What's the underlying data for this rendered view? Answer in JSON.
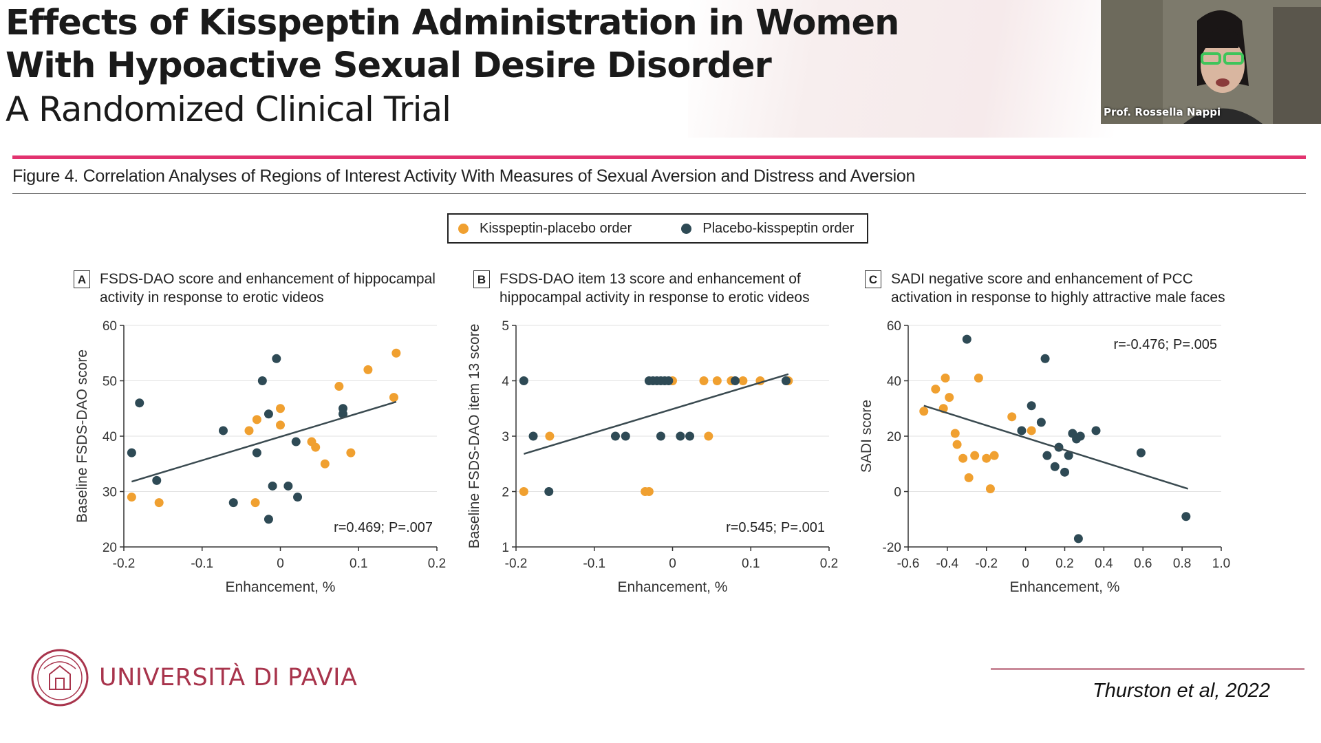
{
  "slide": {
    "title_line1": "Effects of Kisspeptin Administration in Women",
    "title_line2": "With Hypoactive Sexual Desire Disorder",
    "title_line3": "A Randomized Clinical Trial",
    "speaker_name": "Prof. Rossella Nappi",
    "figure_title": "Figure 4. Correlation Analyses of Regions of Interest Activity With Measures of Sexual Aversion and Distress and Aversion",
    "university": "UNIVERSITÀ DI PAVIA",
    "citation": "Thurston et al, 2022"
  },
  "legend": {
    "kp_label": "Kisspeptin-placebo order",
    "pk_label": "Placebo-kisspeptin order",
    "kp_color": "#f0a030",
    "pk_color": "#2e4a55"
  },
  "chart_data": [
    {
      "type": "scatter",
      "panel": "A",
      "title": "FSDS-DAO score and enhancement of hippocampal activity in response to erotic videos",
      "xlabel": "Enhancement, %",
      "ylabel": "Baseline FSDS-DAO score",
      "xlim": [
        -0.2,
        0.2
      ],
      "ylim": [
        20,
        60
      ],
      "xticks": [
        -0.2,
        -0.1,
        0,
        0.1,
        0.2
      ],
      "xtick_labels": [
        "-0.2",
        "-0.1",
        "0",
        "0.1",
        "0.2"
      ],
      "yticks": [
        20,
        30,
        40,
        50,
        60
      ],
      "ytick_labels": [
        "20",
        "30",
        "40",
        "50",
        "60"
      ],
      "annotation_stat": "r=0.469;",
      "annotation_p": "P=.007",
      "annotation_pos": "bottom-right",
      "trend": [
        [
          -0.19,
          31.8
        ],
        [
          0.148,
          46.2
        ]
      ],
      "series": [
        {
          "name": "Kisspeptin-placebo order",
          "x": [
            -0.19,
            -0.155,
            -0.04,
            -0.03,
            -0.032,
            0.0,
            0.0,
            0.04,
            0.045,
            0.057,
            0.075,
            0.09,
            0.112,
            0.145,
            0.148
          ],
          "y": [
            29,
            28,
            41,
            43,
            28,
            45,
            42,
            39,
            38,
            35,
            49,
            37,
            52,
            47,
            55
          ]
        },
        {
          "name": "Placebo-kisspeptin order",
          "x": [
            -0.19,
            -0.18,
            -0.158,
            -0.073,
            -0.06,
            -0.03,
            -0.023,
            -0.015,
            -0.015,
            -0.01,
            -0.005,
            0.01,
            0.02,
            0.022,
            0.08,
            0.08
          ],
          "y": [
            37,
            46,
            32,
            41,
            28,
            37,
            50,
            44,
            25,
            31,
            54,
            31,
            39,
            29,
            45,
            44
          ]
        }
      ]
    },
    {
      "type": "scatter",
      "panel": "B",
      "title": "FSDS-DAO item 13 score and enhancement of hippocampal activity in response to erotic videos",
      "xlabel": "Enhancement, %",
      "ylabel": "Baseline FSDS-DAO item 13 score",
      "xlim": [
        -0.2,
        0.2
      ],
      "ylim": [
        1,
        5
      ],
      "xticks": [
        -0.2,
        -0.1,
        0,
        0.1,
        0.2
      ],
      "xtick_labels": [
        "-0.2",
        "-0.1",
        "0",
        "0.1",
        "0.2"
      ],
      "yticks": [
        1,
        2,
        3,
        4,
        5
      ],
      "ytick_labels": [
        "1",
        "2",
        "3",
        "4",
        "5"
      ],
      "annotation_stat": "r=0.545;",
      "annotation_p": "P=.001",
      "annotation_pos": "bottom-right",
      "trend": [
        [
          -0.19,
          2.68
        ],
        [
          0.148,
          4.12
        ]
      ],
      "series": [
        {
          "name": "Kisspeptin-placebo order",
          "x": [
            -0.19,
            -0.157,
            -0.035,
            -0.03,
            0.0,
            0.04,
            0.057,
            0.075,
            0.09,
            0.112,
            0.148,
            0.046
          ],
          "y": [
            2,
            3,
            2,
            2,
            4,
            4,
            4,
            4,
            4,
            4,
            4,
            3
          ]
        },
        {
          "name": "Placebo-kisspeptin order",
          "x": [
            -0.19,
            -0.178,
            -0.158,
            -0.073,
            -0.06,
            -0.03,
            -0.025,
            -0.02,
            -0.015,
            -0.01,
            -0.005,
            -0.015,
            0.01,
            0.022,
            0.08,
            0.145
          ],
          "y": [
            4,
            3,
            2,
            3,
            3,
            4,
            4,
            4,
            4,
            4,
            4,
            3,
            3,
            3,
            4,
            4
          ]
        }
      ]
    },
    {
      "type": "scatter",
      "panel": "C",
      "title": "SADI negative score and enhancement of PCC activation in response to highly attractive male faces",
      "xlabel": "Enhancement, %",
      "ylabel": "SADI score",
      "xlim": [
        -0.6,
        1.0
      ],
      "ylim": [
        -20,
        60
      ],
      "xticks": [
        -0.6,
        -0.4,
        -0.2,
        0,
        0.2,
        0.4,
        0.6,
        0.8,
        1.0
      ],
      "xtick_labels": [
        "-0.6",
        "-0.4",
        "-0.2",
        "0",
        "0.2",
        "0.4",
        "0.6",
        "0.8",
        "1.0"
      ],
      "yticks": [
        -20,
        0,
        20,
        40,
        60
      ],
      "ytick_labels": [
        "-20",
        "0",
        "20",
        "40",
        "60"
      ],
      "annotation_stat": "r=-0.476;",
      "annotation_p": "P=.005",
      "annotation_pos": "top-right",
      "trend": [
        [
          -0.52,
          31
        ],
        [
          0.83,
          1
        ]
      ],
      "series": [
        {
          "name": "Kisspeptin-placebo order",
          "x": [
            -0.52,
            -0.46,
            -0.41,
            -0.39,
            -0.42,
            -0.36,
            -0.35,
            -0.32,
            -0.29,
            -0.26,
            -0.24,
            -0.2,
            -0.18,
            -0.16,
            -0.07,
            0.03
          ],
          "y": [
            29,
            37,
            41,
            34,
            30,
            21,
            17,
            12,
            5,
            13,
            41,
            12,
            1,
            13,
            27,
            22
          ]
        },
        {
          "name": "Placebo-kisspeptin order",
          "x": [
            -0.3,
            -0.02,
            0.03,
            0.08,
            0.1,
            0.11,
            0.15,
            0.17,
            0.2,
            0.22,
            0.24,
            0.26,
            0.28,
            0.36,
            0.59,
            0.82,
            0.27
          ],
          "y": [
            55,
            22,
            31,
            25,
            48,
            13,
            9,
            16,
            7,
            13,
            21,
            19,
            20,
            22,
            14,
            -9,
            -17
          ]
        }
      ]
    }
  ]
}
